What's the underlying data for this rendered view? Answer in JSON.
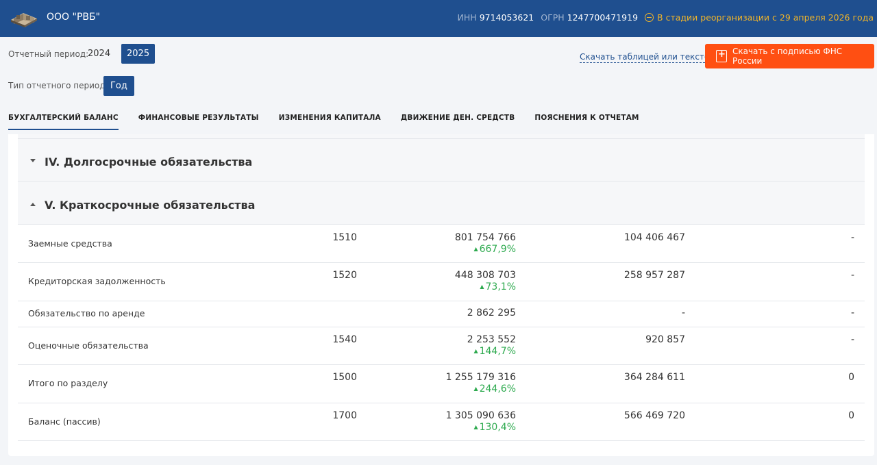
{
  "header": {
    "company": "ООО \"РВБ\"",
    "inn_label": "ИНН",
    "inn": "9714053621",
    "ogrn_label": "ОГРН",
    "ogrn": "1247700471919",
    "status": "В стадии реорганизации с 29 апреля 2026 года"
  },
  "controls": {
    "period_label": "Отчетный период:",
    "years": [
      "2024",
      "2025"
    ],
    "selected_year": "2025",
    "type_label": "Тип отчетного периода:",
    "type_value": "Год",
    "download_text": "Скачать таблицей или текстом",
    "download_signed": "Скачать с подписью ФНС России"
  },
  "tabs": [
    {
      "label": "БУХГАЛТЕРСКИЙ БАЛАНС",
      "active": true
    },
    {
      "label": "ФИНАНСОВЫЕ РЕЗУЛЬТАТЫ",
      "active": false
    },
    {
      "label": "ИЗМЕНЕНИЯ КАПИТАЛА",
      "active": false
    },
    {
      "label": "ДВИЖЕНИЕ ДЕН. СРЕДСТВ",
      "active": false
    },
    {
      "label": "ПОЯСНЕНИЯ К ОТЧЕТАМ",
      "active": false
    }
  ],
  "sections": {
    "s4": "IV. Долгосрочные обязательства",
    "s5": "V. Краткосрочные обязательства"
  },
  "rows": [
    {
      "name": "Заемные средства",
      "code": "1510",
      "v1": "801 754 766",
      "change": "667,9%",
      "v2": "104 406 467",
      "v3": "-"
    },
    {
      "name": "Кредиторская задолженность",
      "code": "1520",
      "v1": "448 308 703",
      "change": "73,1%",
      "v2": "258 957 287",
      "v3": "-"
    },
    {
      "name": "Обязательство по аренде",
      "code": "",
      "v1": "2 862 295",
      "change": "",
      "v2": "-",
      "v3": "-"
    },
    {
      "name": "Оценочные обязательства",
      "code": "1540",
      "v1": "2 253 552",
      "change": "144,7%",
      "v2": "920 857",
      "v3": "-"
    },
    {
      "name": "Итого по разделу",
      "code": "1500",
      "v1": "1 255 179 316",
      "change": "244,6%",
      "v2": "364 284 611",
      "v3": "0"
    },
    {
      "name": "Баланс (пассив)",
      "code": "1700",
      "v1": "1 305 090 636",
      "change": "130,4%",
      "v2": "566 469 720",
      "v3": "0"
    }
  ],
  "colors": {
    "brand": "#1f4f8f",
    "accent": "#ff4f12",
    "positive": "#2eaa4f",
    "warning": "#f0b429"
  }
}
